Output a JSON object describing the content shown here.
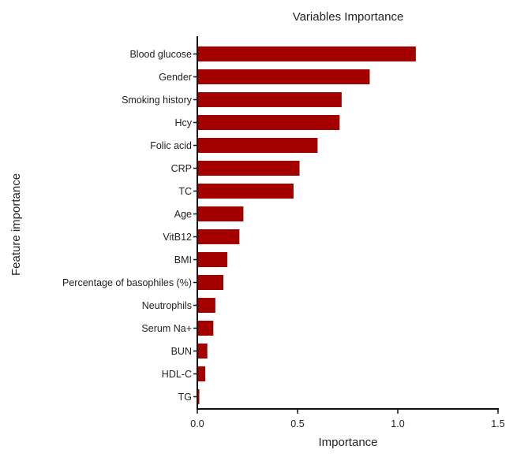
{
  "chart_data": {
    "type": "bar",
    "orientation": "horizontal",
    "title": "Variables Importance",
    "xlabel": "Importance",
    "ylabel": "Feature importance",
    "xlim": [
      0,
      1.5
    ],
    "xticks": [
      "0.0",
      "0.5",
      "1.0",
      "1.5"
    ],
    "xtick_values": [
      0,
      0.5,
      1.0,
      1.5
    ],
    "grid": false,
    "bar_color": "#a50000",
    "categories": [
      "Blood glucose",
      "Gender",
      "Smoking history",
      "Hcy",
      "Folic acid",
      "CRP",
      "TC",
      "Age",
      "VitB12",
      "BMI",
      "Percentage of basophiles (%)",
      "Neutrophils",
      "Serum Na+",
      "BUN",
      "HDL-C",
      "TG"
    ],
    "values": [
      1.09,
      0.86,
      0.72,
      0.71,
      0.6,
      0.51,
      0.48,
      0.23,
      0.21,
      0.15,
      0.13,
      0.09,
      0.08,
      0.05,
      0.04,
      0.01
    ]
  }
}
